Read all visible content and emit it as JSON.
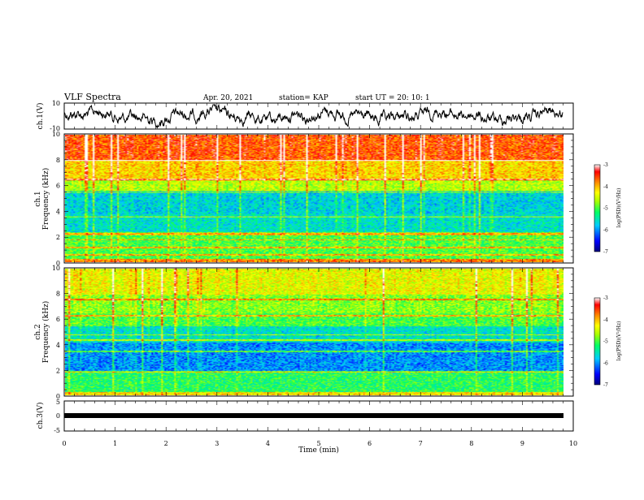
{
  "header": {
    "title": "VLF Spectra",
    "date": "Apr. 20, 2021",
    "station": "station= KAP",
    "start": "start  UT  =   20: 10: 1"
  },
  "chart_data": [
    {
      "type": "line",
      "panel": "ch1-waveform",
      "ylabel": "ch.1(V)",
      "ylim": [
        -10,
        10
      ],
      "yticks": [
        "10",
        "-10"
      ],
      "xlim": [
        0,
        10
      ],
      "series": [
        {
          "values_note_free": true,
          "color": "#000000"
        }
      ],
      "x_min_start": 0.0,
      "x_min_end": 9.8
    },
    {
      "type": "heatmap",
      "panel": "ch1-spectrogram",
      "ylabel_line1": "ch.1",
      "ylabel_line2": "Frequency (kHz)",
      "ylim": [
        0,
        10
      ],
      "yticks": [
        "0",
        "2",
        "4",
        "6",
        "8",
        "10"
      ],
      "xlim": [
        0,
        10
      ],
      "colorbar": {
        "label": "log(PSD)(V²/Hz)",
        "range": [
          -7,
          -3
        ],
        "ticks": [
          "-3",
          "-4",
          "-5",
          "-6",
          "-7"
        ]
      }
    },
    {
      "type": "heatmap",
      "panel": "ch2-spectrogram",
      "ylabel_line1": "ch.2",
      "ylabel_line2": "Frequency (kHz)",
      "ylim": [
        0,
        10
      ],
      "yticks": [
        "0",
        "2",
        "4",
        "6",
        "8",
        "10"
      ],
      "xlim": [
        0,
        10
      ],
      "colorbar": {
        "label": "log(PSD)(V²/Hz)",
        "range": [
          -7,
          -3
        ],
        "ticks": [
          "-3",
          "-4",
          "-5",
          "-6",
          "-7"
        ]
      }
    },
    {
      "type": "line",
      "panel": "ch3-waveform",
      "ylabel": "ch.3(V)",
      "ylim": [
        -5,
        5
      ],
      "yticks": [
        "5",
        "0",
        "-5"
      ],
      "xlim": [
        0,
        10
      ],
      "series": [
        {
          "value": 0,
          "color": "#000000"
        }
      ]
    }
  ],
  "xaxis": {
    "label": "Time  (min)",
    "ticks": [
      "0",
      "1",
      "2",
      "3",
      "4",
      "5",
      "6",
      "7",
      "8",
      "9",
      "10"
    ]
  },
  "colors": {
    "scale": [
      "#00007a",
      "#0000ff",
      "#00ccff",
      "#00ff66",
      "#aaff00",
      "#ffff00",
      "#ff8800",
      "#ff0000",
      "#ffffff"
    ]
  }
}
